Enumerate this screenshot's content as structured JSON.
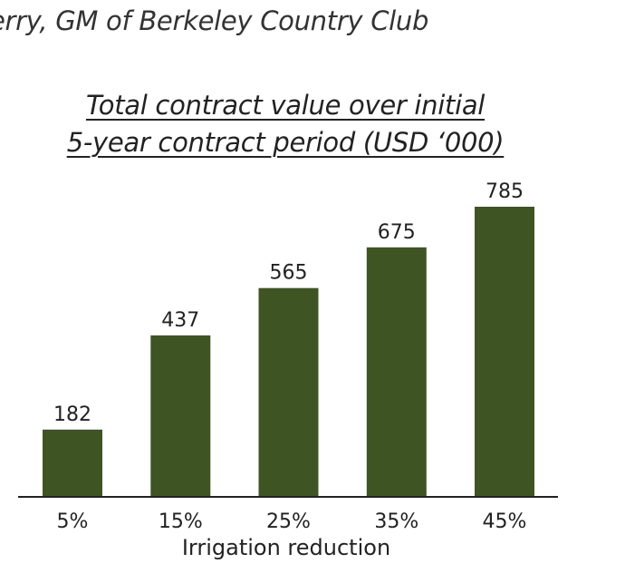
{
  "attribution": "erry, GM of Berkeley Country Club",
  "chart_data": {
    "type": "bar",
    "title_lines": [
      "Total contract value over initial",
      "5-year contract period (USD ‘000)"
    ],
    "categories": [
      "5%",
      "15%",
      "25%",
      "35%",
      "45%"
    ],
    "values": [
      182,
      437,
      565,
      675,
      785
    ],
    "data_labels": [
      "182",
      "437",
      "565",
      "675",
      "785"
    ],
    "xlabel": "Irrigation reduction",
    "ylabel": "",
    "ylim": [
      0,
      785
    ],
    "grid": false,
    "legend": "none",
    "bar_color": "#3f5423"
  }
}
